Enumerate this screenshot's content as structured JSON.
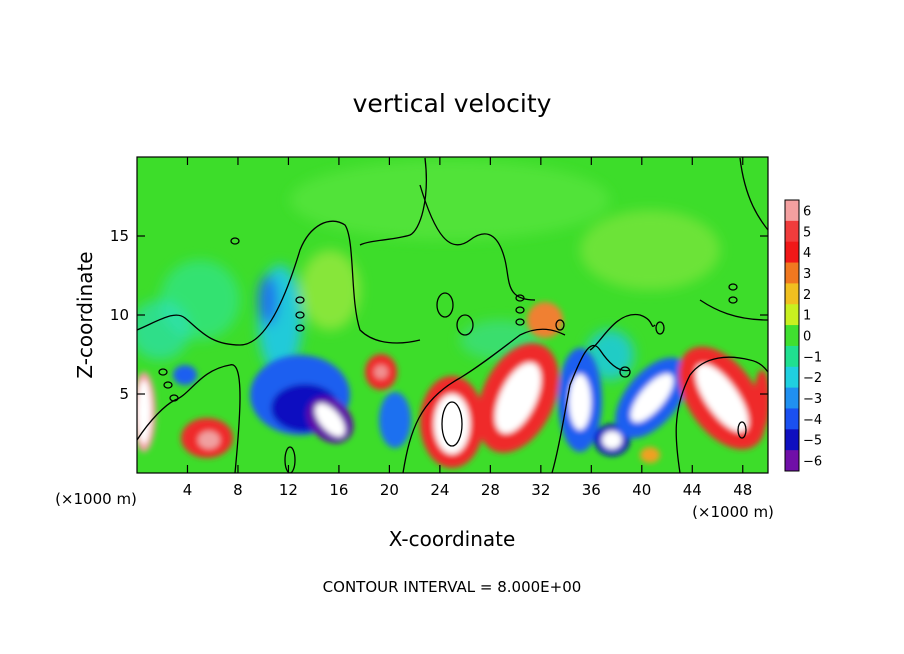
{
  "chart_data": {
    "type": "heatmap",
    "title": "vertical velocity",
    "xlabel": "X-coordinate",
    "ylabel": "Z-coordinate",
    "x_unit": "(×1000 m)",
    "xlim": [
      0,
      50
    ],
    "ylim": [
      0,
      20
    ],
    "x_ticks": [
      4,
      8,
      12,
      16,
      20,
      24,
      28,
      32,
      36,
      40,
      44,
      48
    ],
    "y_ticks": [
      5,
      10,
      15
    ],
    "contour_interval_label": "CONTOUR INTERVAL = 8.000E+00",
    "colorbar": {
      "levels": [
        6,
        5,
        4,
        3,
        2,
        1,
        0,
        -1,
        -2,
        -3,
        -4,
        -5,
        -6
      ],
      "labels": [
        "6",
        "5",
        "4",
        "3",
        "2",
        "1",
        "0",
        "−1",
        "−2",
        "−3",
        "−4",
        "−5",
        "−6"
      ]
    },
    "features": [
      {
        "x": 0.5,
        "z": 3.5,
        "w": 5,
        "kind": "updraft"
      },
      {
        "x": 5.8,
        "z": 2.0,
        "w": 5,
        "kind": "updraft"
      },
      {
        "x": 15.0,
        "z": 3.0,
        "w": -6,
        "kind": "downdraft"
      },
      {
        "x": 19.0,
        "z": 6.5,
        "w": 5,
        "kind": "updraft"
      },
      {
        "x": 25.0,
        "z": 3.2,
        "w": 6,
        "kind": "updraft"
      },
      {
        "x": 30.5,
        "z": 4.5,
        "w": 6,
        "kind": "updraft"
      },
      {
        "x": 34.5,
        "z": 4.5,
        "w": -6,
        "kind": "downdraft"
      },
      {
        "x": 38.0,
        "z": 2.5,
        "w": -5,
        "kind": "downdraft"
      },
      {
        "x": 40.5,
        "z": 5.0,
        "w": -6,
        "kind": "downdraft"
      },
      {
        "x": 46.5,
        "z": 4.0,
        "w": 6,
        "kind": "updraft"
      }
    ]
  }
}
